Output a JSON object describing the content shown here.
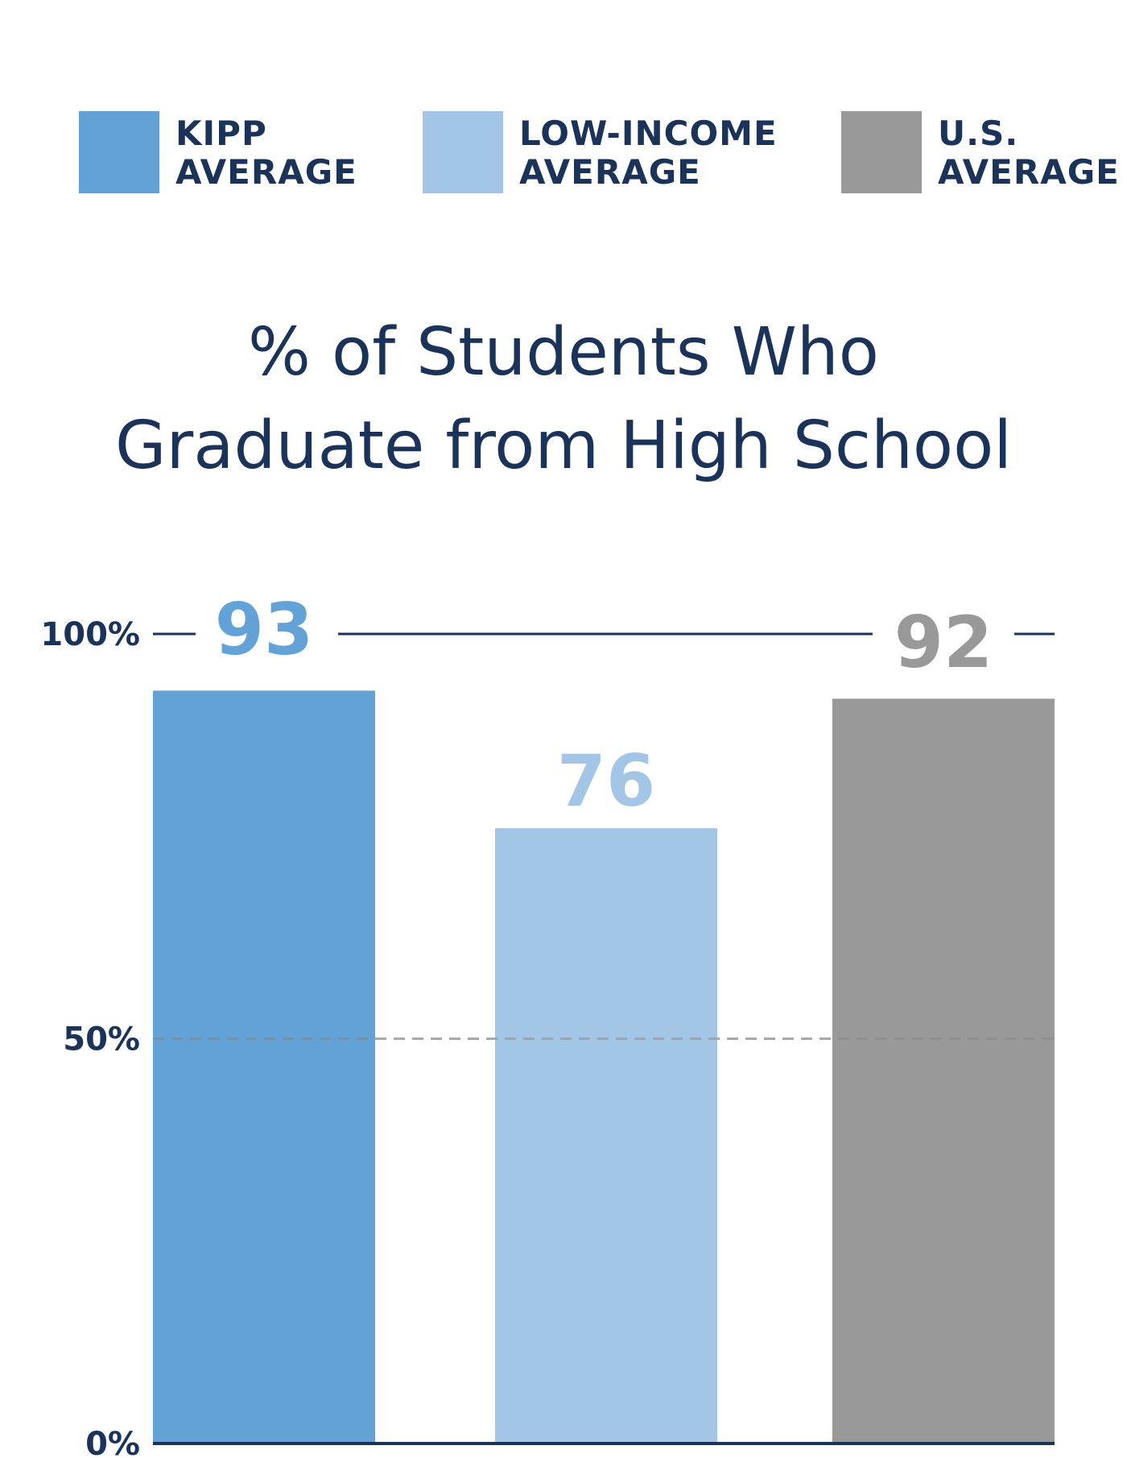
{
  "legend": {
    "items": [
      {
        "line1": "KIPP",
        "line2": "AVERAGE",
        "color": "#62a2d6"
      },
      {
        "line1": "LOW-INCOME",
        "line2": "AVERAGE",
        "color": "#a3c6e7"
      },
      {
        "line1": "U.S.",
        "line2": "AVERAGE",
        "color": "#999999"
      }
    ]
  },
  "chart_data": {
    "type": "bar",
    "title_line1": "% of Students Who",
    "title_line2": "Graduate from High School",
    "categories": [
      "KIPP AVERAGE",
      "LOW-INCOME AVERAGE",
      "U.S. AVERAGE"
    ],
    "values": [
      93,
      76,
      92
    ],
    "value_labels": [
      "93",
      "76",
      "92"
    ],
    "colors": [
      "#62a2d6",
      "#a3c6e7",
      "#999999"
    ],
    "ylim": [
      0,
      100
    ],
    "yticks": [
      {
        "value": 100,
        "label": "100%"
      },
      {
        "value": 50,
        "label": "50%"
      },
      {
        "value": 0,
        "label": "0%"
      }
    ],
    "grid": "dashed at 50%",
    "legend_position": "top",
    "axis_color": "#1b3358"
  }
}
